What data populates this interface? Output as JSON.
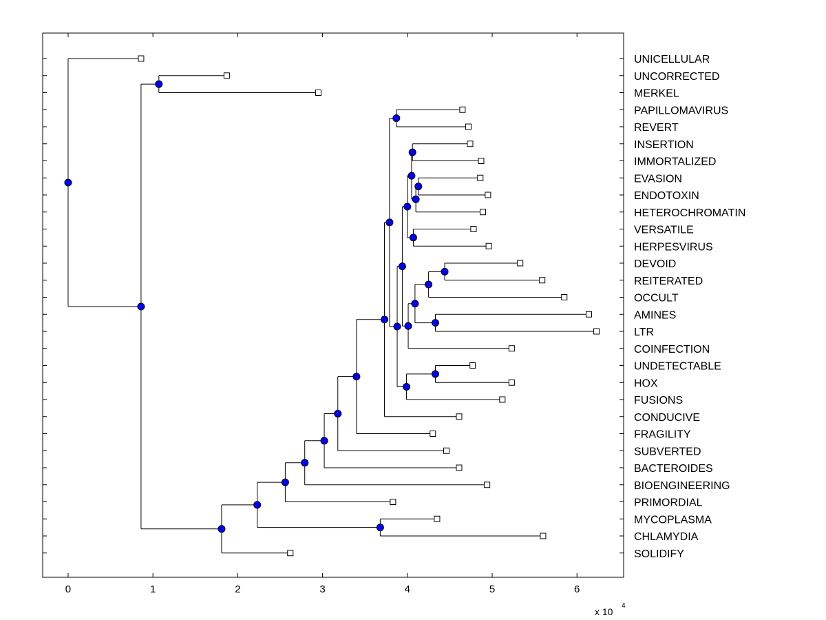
{
  "chart_data": {
    "type": "dendrogram",
    "orientation": "horizontal",
    "xlim": [
      -0.3,
      6.55
    ],
    "xticks": [
      "0",
      "1",
      "2",
      "3",
      "4",
      "5",
      "6"
    ],
    "xtick_values": [
      0,
      1,
      2,
      3,
      4,
      5,
      6
    ],
    "x_scale_label": "x 10",
    "x_scale_exponent": "4",
    "grid": false,
    "leaves": [
      {
        "label": "UNICELLULAR",
        "x": 0.86
      },
      {
        "label": "UNCORRECTED",
        "x": 1.87
      },
      {
        "label": "MERKEL",
        "x": 2.95
      },
      {
        "label": "PAPILLOMAVIRUS",
        "x": 4.65
      },
      {
        "label": "REVERT",
        "x": 4.72
      },
      {
        "label": "INSERTION",
        "x": 4.74
      },
      {
        "label": "IMMORTALIZED",
        "x": 4.87
      },
      {
        "label": "EVASION",
        "x": 4.86
      },
      {
        "label": "ENDOTOXIN",
        "x": 4.95
      },
      {
        "label": "HETEROCHROMATIN",
        "x": 4.89
      },
      {
        "label": "VERSATILE",
        "x": 4.78
      },
      {
        "label": "HERPESVIRUS",
        "x": 4.96
      },
      {
        "label": "DEVOID",
        "x": 5.33
      },
      {
        "label": "REITERATED",
        "x": 5.59
      },
      {
        "label": "OCCULT",
        "x": 5.85
      },
      {
        "label": "AMINES",
        "x": 6.14
      },
      {
        "label": "LTR",
        "x": 6.23
      },
      {
        "label": "COINFECTION",
        "x": 5.23
      },
      {
        "label": "UNDETECTABLE",
        "x": 4.77
      },
      {
        "label": "HOX",
        "x": 5.23
      },
      {
        "label": "FUSIONS",
        "x": 5.12
      },
      {
        "label": "CONDUCIVE",
        "x": 4.61
      },
      {
        "label": "FRAGILITY",
        "x": 4.3
      },
      {
        "label": "SUBVERTED",
        "x": 4.46
      },
      {
        "label": "BACTEROIDES",
        "x": 4.61
      },
      {
        "label": "BIOENGINEERING",
        "x": 4.94
      },
      {
        "label": "PRIMORDIAL",
        "x": 3.83
      },
      {
        "label": "MYCOPLASMA",
        "x": 4.35
      },
      {
        "label": "CHLAMYDIA",
        "x": 5.6
      },
      {
        "label": "SOLIDIFY",
        "x": 2.62
      }
    ],
    "nodes": [
      {
        "id": "root",
        "x": 0.0,
        "children": [
          "L0",
          "n1"
        ]
      },
      {
        "id": "n1",
        "x": 0.86,
        "children": [
          "n2",
          "n3"
        ]
      },
      {
        "id": "n2",
        "x": 1.07,
        "children": [
          "L1",
          "L2"
        ]
      },
      {
        "id": "n3",
        "x": 1.81,
        "children": [
          "n4",
          "L29"
        ]
      },
      {
        "id": "n4",
        "x": 2.23,
        "children": [
          "n5",
          "n6"
        ]
      },
      {
        "id": "n6",
        "x": 3.68,
        "children": [
          "L27",
          "L28"
        ]
      },
      {
        "id": "n5",
        "x": 2.56,
        "children": [
          "n7",
          "L26"
        ]
      },
      {
        "id": "n7",
        "x": 2.79,
        "children": [
          "n8",
          "L25"
        ]
      },
      {
        "id": "n8",
        "x": 3.02,
        "children": [
          "n9",
          "L24"
        ]
      },
      {
        "id": "n9",
        "x": 3.18,
        "children": [
          "n10",
          "L23"
        ]
      },
      {
        "id": "n10",
        "x": 3.4,
        "children": [
          "n11",
          "L22"
        ]
      },
      {
        "id": "n11",
        "x": 3.73,
        "children": [
          "n12",
          "L21"
        ]
      },
      {
        "id": "n12",
        "x": 3.79,
        "children": [
          "n13",
          "n14"
        ]
      },
      {
        "id": "n13",
        "x": 3.87,
        "children": [
          "L3",
          "L4"
        ]
      },
      {
        "id": "n14",
        "x": 3.88,
        "children": [
          "n15",
          "n16"
        ]
      },
      {
        "id": "n15",
        "x": 3.94,
        "children": [
          "n17",
          "n18"
        ]
      },
      {
        "id": "n17",
        "x": 4.0,
        "children": [
          "n19",
          "n20"
        ]
      },
      {
        "id": "n19",
        "x": 4.05,
        "children": [
          "n21",
          "n22"
        ]
      },
      {
        "id": "n21",
        "x": 4.06,
        "children": [
          "L5",
          "L6"
        ]
      },
      {
        "id": "n22",
        "x": 4.1,
        "children": [
          "n23",
          "L9"
        ]
      },
      {
        "id": "n23",
        "x": 4.13,
        "children": [
          "L7",
          "L8"
        ]
      },
      {
        "id": "n20",
        "x": 4.07,
        "children": [
          "L10",
          "L11"
        ]
      },
      {
        "id": "n18",
        "x": 4.01,
        "children": [
          "n24",
          "L17"
        ]
      },
      {
        "id": "n24",
        "x": 4.09,
        "children": [
          "n25",
          "n26"
        ]
      },
      {
        "id": "n25",
        "x": 4.25,
        "children": [
          "n27",
          "L14"
        ]
      },
      {
        "id": "n27",
        "x": 4.44,
        "children": [
          "L12",
          "L13"
        ]
      },
      {
        "id": "n26",
        "x": 4.33,
        "children": [
          "L15",
          "L16"
        ]
      },
      {
        "id": "n16",
        "x": 3.99,
        "children": [
          "n28",
          "L20"
        ]
      },
      {
        "id": "n28",
        "x": 4.33,
        "children": [
          "L18",
          "L19"
        ]
      }
    ]
  }
}
